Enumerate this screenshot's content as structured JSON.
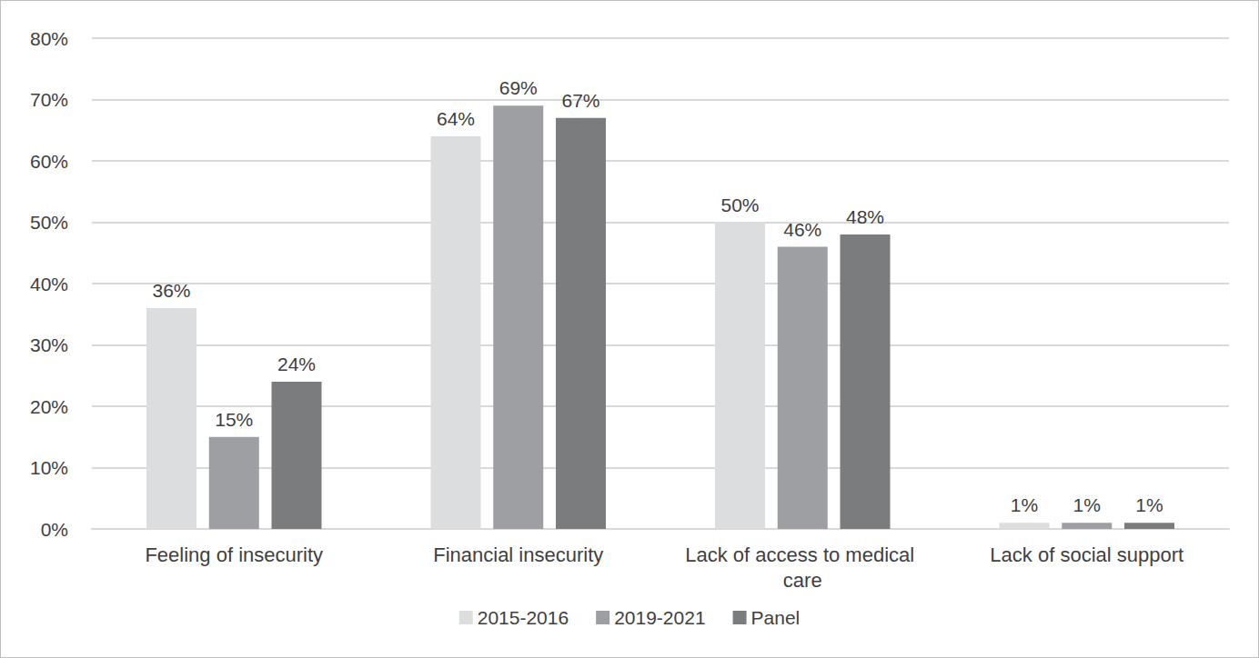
{
  "chart_data": {
    "type": "bar",
    "categories": [
      "Feeling of insecurity",
      "Financial insecurity",
      "Lack of access to medical care",
      "Lack of social support"
    ],
    "series": [
      {
        "name": "2015-2016",
        "color": "#dcdddf",
        "values": [
          36,
          64,
          50,
          1
        ],
        "value_labels": [
          "36%",
          "64%",
          "50%",
          "1%"
        ]
      },
      {
        "name": "2019-2021",
        "color": "#9d9fa2",
        "values": [
          15,
          69,
          46,
          1
        ],
        "value_labels": [
          "15%",
          "69%",
          "46%",
          "1%"
        ]
      },
      {
        "name": "Panel",
        "color": "#7b7c7e",
        "values": [
          24,
          67,
          48,
          1
        ],
        "value_labels": [
          "24%",
          "67%",
          "48%",
          "1%"
        ]
      }
    ],
    "ylim": [
      0,
      80
    ],
    "yticks": [
      {
        "value": 0,
        "label": "0%"
      },
      {
        "value": 10,
        "label": "10%"
      },
      {
        "value": 20,
        "label": "20%"
      },
      {
        "value": 30,
        "label": "30%"
      },
      {
        "value": 40,
        "label": "40%"
      },
      {
        "value": 50,
        "label": "50%"
      },
      {
        "value": 60,
        "label": "60%"
      },
      {
        "value": 70,
        "label": "70%"
      },
      {
        "value": 80,
        "label": "80%"
      }
    ],
    "grid": true,
    "legend": "bottom",
    "data_labels": true
  }
}
